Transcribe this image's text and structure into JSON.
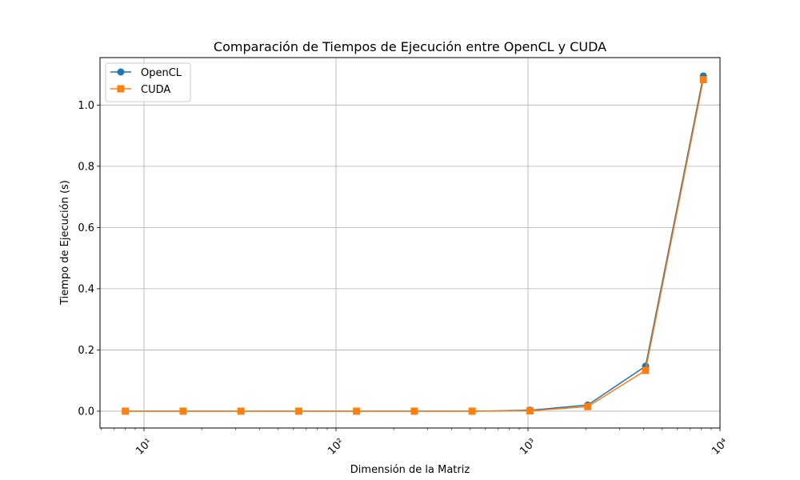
{
  "chart_data": {
    "type": "line",
    "title": "Comparación de Tiempos de Ejecución entre OpenCL y CUDA",
    "xlabel": "Dimensión de la Matriz",
    "ylabel": "Tiempo de Ejecución (s)",
    "xscale": "log",
    "xlim": [
      5.9,
      10000
    ],
    "ylim": [
      -0.055,
      1.155
    ],
    "grid": true,
    "legend_position": "top-left",
    "x": [
      8,
      16,
      32,
      64,
      128,
      256,
      512,
      1024,
      2048,
      4096,
      8192
    ],
    "x_ticks": [
      {
        "value": 10,
        "label": "10¹"
      },
      {
        "value": 100,
        "label": "10²"
      },
      {
        "value": 1000,
        "label": "10³"
      },
      {
        "value": 10000,
        "label": "10⁴"
      }
    ],
    "y_ticks": [
      {
        "value": 0.0,
        "label": "0.0"
      },
      {
        "value": 0.2,
        "label": "0.2"
      },
      {
        "value": 0.4,
        "label": "0.4"
      },
      {
        "value": 0.6,
        "label": "0.6"
      },
      {
        "value": 0.8,
        "label": "0.8"
      },
      {
        "value": 1.0,
        "label": "1.0"
      }
    ],
    "series": [
      {
        "name": "OpenCL",
        "color": "#1f77b4",
        "marker": "circle",
        "values": [
          0.0,
          0.0,
          0.0,
          0.0,
          0.0,
          0.0,
          0.0,
          0.003,
          0.02,
          0.147,
          1.095
        ]
      },
      {
        "name": "CUDA",
        "color": "#ff7f0e",
        "marker": "square",
        "values": [
          0.0,
          0.0,
          0.0,
          0.0,
          0.0,
          0.0,
          0.0,
          0.001,
          0.015,
          0.133,
          1.083
        ]
      }
    ]
  }
}
